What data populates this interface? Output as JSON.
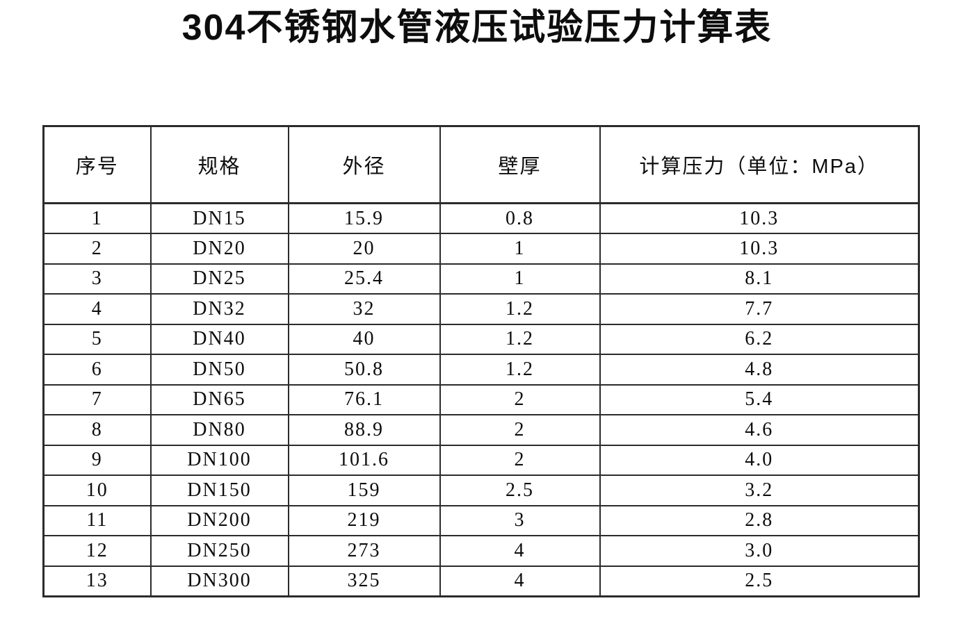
{
  "page": {
    "title": "304不锈钢水管液压试验压力计算表",
    "background_color": "#ffffff",
    "text_color": "#0d0d0d",
    "border_color": "#2b2b2b"
  },
  "table": {
    "headers": [
      "序号",
      "规格",
      "外径",
      "壁厚",
      "计算压力（单位：MPa）"
    ],
    "rows": [
      [
        "1",
        "DN15",
        "15.9",
        "0.8",
        "10.3"
      ],
      [
        "2",
        "DN20",
        "20",
        "1",
        "10.3"
      ],
      [
        "3",
        "DN25",
        "25.4",
        "1",
        "8.1"
      ],
      [
        "4",
        "DN32",
        "32",
        "1.2",
        "7.7"
      ],
      [
        "5",
        "DN40",
        "40",
        "1.2",
        "6.2"
      ],
      [
        "6",
        "DN50",
        "50.8",
        "1.2",
        "4.8"
      ],
      [
        "7",
        "DN65",
        "76.1",
        "2",
        "5.4"
      ],
      [
        "8",
        "DN80",
        "88.9",
        "2",
        "4.6"
      ],
      [
        "9",
        "DN100",
        "101.6",
        "2",
        "4.0"
      ],
      [
        "10",
        "DN150",
        "159",
        "2.5",
        "3.2"
      ],
      [
        "11",
        "DN200",
        "219",
        "3",
        "2.8"
      ],
      [
        "12",
        "DN250",
        "273",
        "4",
        "3.0"
      ],
      [
        "13",
        "DN300",
        "325",
        "4",
        "2.5"
      ]
    ]
  }
}
